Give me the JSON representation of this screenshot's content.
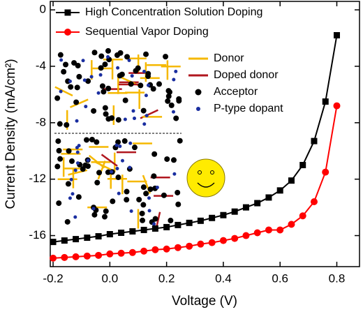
{
  "chart_data": {
    "type": "line",
    "xlabel": "Voltage (V)",
    "ylabel": "Current Density (mA/cm²)",
    "x": [
      -0.2,
      -0.16,
      -0.12,
      -0.08,
      -0.04,
      0,
      0.04,
      0.08,
      0.12,
      0.16,
      0.2,
      0.24,
      0.28,
      0.32,
      0.36,
      0.4,
      0.44,
      0.48,
      0.52,
      0.56,
      0.6,
      0.64,
      0.68,
      0.72,
      0.76,
      0.8
    ],
    "series": [
      {
        "name": "High Concentration Solution Doping",
        "color": "#000000",
        "marker": "square",
        "values": [
          -16.45,
          -16.35,
          -16.25,
          -16.15,
          -16.05,
          -15.9,
          -15.8,
          -15.7,
          -15.6,
          -15.5,
          -15.4,
          -15.25,
          -15.1,
          -14.95,
          -14.75,
          -14.55,
          -14.3,
          -14.0,
          -13.7,
          -13.3,
          -12.8,
          -12.1,
          -11.0,
          -9.3,
          -6.5,
          -1.8
        ]
      },
      {
        "name": "Sequential Vapor Doping",
        "color": "#ff0000",
        "marker": "circle",
        "values": [
          -17.6,
          -17.55,
          -17.5,
          -17.45,
          -17.4,
          -17.3,
          -17.25,
          -17.2,
          -17.1,
          -17.0,
          -16.95,
          -16.85,
          -16.75,
          -16.6,
          -16.5,
          -16.35,
          -16.2,
          -16.0,
          -15.8,
          -15.6,
          -15.6,
          -15.2,
          -14.6,
          -13.6,
          -11.5,
          -6.8
        ]
      }
    ],
    "xlim": [
      -0.21,
      0.88
    ],
    "ylim": [
      -18.2,
      0.6
    ],
    "xticks": [
      -0.2,
      {
        "value": 0,
        "label": "0.0"
      },
      0.2,
      0.4,
      0.6,
      0.8
    ],
    "yticks": [
      0,
      -4,
      -8,
      -12,
      -16
    ],
    "legend": "upper left",
    "inset_legend": [
      "Donor",
      "Doped donor",
      "Acceptor",
      "P-type dopant"
    ]
  }
}
